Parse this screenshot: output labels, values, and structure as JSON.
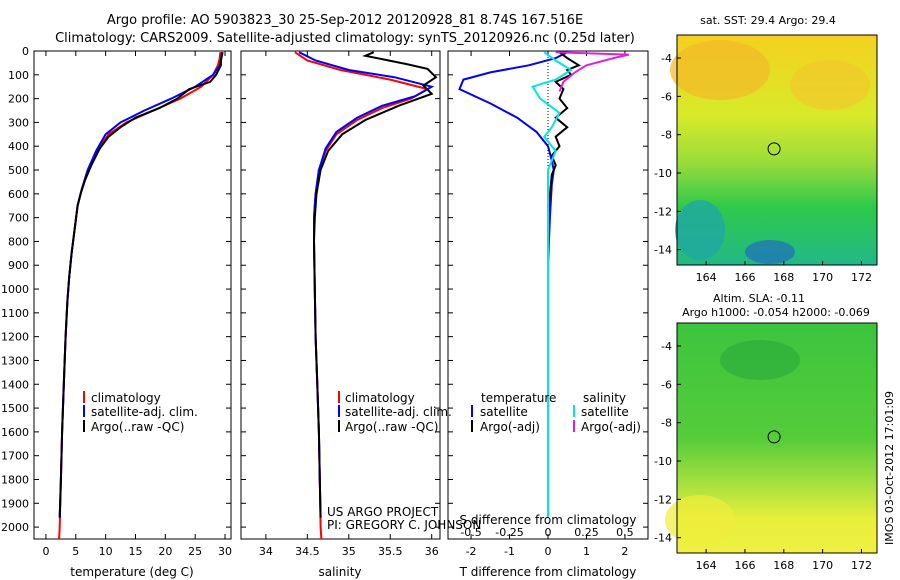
{
  "header": {
    "line1": "Argo profile: AO 5903823_30 25-Sep-2012 20120928_81 8.74S 167.516E",
    "line2": "Climatology: CARS2009. Satellite-adjusted climatology: synTS_20120926.nc (0.25d later)"
  },
  "footer": {
    "project": "US ARGO PROJECT",
    "pi": "PI: GREGORY C. JOHNSON",
    "stamp": "IMOS 03-Oct-2012 17:01:09"
  },
  "chart_data": [
    {
      "type": "line",
      "xlabel": "temperature (deg C)",
      "xlim": [
        -2,
        31
      ],
      "xticks": [
        "0",
        "5",
        "10",
        "15",
        "20",
        "25",
        "30"
      ],
      "xtick_values": [
        0,
        5,
        10,
        15,
        20,
        25,
        30
      ],
      "ylim": [
        2050,
        0
      ],
      "yticks": [
        "0",
        "100",
        "200",
        "300",
        "400",
        "500",
        "600",
        "700",
        "800",
        "900",
        "1000",
        "1100",
        "1200",
        "1300",
        "1400",
        "1500",
        "1600",
        "1700",
        "1800",
        "1900",
        "2000"
      ],
      "ytick_values": [
        0,
        100,
        200,
        300,
        400,
        500,
        600,
        700,
        800,
        900,
        1000,
        1100,
        1200,
        1300,
        1400,
        1500,
        1600,
        1700,
        1800,
        1900,
        2000
      ],
      "legend": [
        "climatology",
        "satellite-adj. clim.",
        "Argo(..raw -QC)"
      ],
      "legend_placement": "lower-center",
      "series": [
        {
          "name": "climatology",
          "color": "#ff0000",
          "points": [
            [
              29.2,
              5
            ],
            [
              29.1,
              30
            ],
            [
              28.8,
              60
            ],
            [
              28,
              100
            ],
            [
              26,
              150
            ],
            [
              22.5,
              200
            ],
            [
              18,
              250
            ],
            [
              13.5,
              300
            ],
            [
              10.5,
              350
            ],
            [
              8.5,
              420
            ],
            [
              7,
              500
            ],
            [
              6,
              580
            ],
            [
              5.3,
              650
            ],
            [
              4.8,
              750
            ],
            [
              4.3,
              850
            ],
            [
              3.9,
              950
            ],
            [
              3.6,
              1050
            ],
            [
              3.3,
              1200
            ],
            [
              3.0,
              1400
            ],
            [
              2.7,
              1600
            ],
            [
              2.5,
              1800
            ],
            [
              2.3,
              2000
            ],
            [
              2.2,
              2050
            ]
          ]
        },
        {
          "name": "satellite-adj. clim.",
          "color": "#0000ff",
          "points": [
            [
              29.5,
              5
            ],
            [
              29.4,
              30
            ],
            [
              29.1,
              60
            ],
            [
              28,
              100
            ],
            [
              25,
              150
            ],
            [
              21,
              200
            ],
            [
              16.5,
              250
            ],
            [
              12.5,
              300
            ],
            [
              10,
              350
            ],
            [
              8.4,
              420
            ],
            [
              7,
              500
            ],
            [
              6,
              580
            ],
            [
              5.3,
              650
            ],
            [
              4.8,
              750
            ],
            [
              4.3,
              850
            ],
            [
              3.9,
              950
            ],
            [
              3.6,
              1050
            ],
            [
              3.3,
              1200
            ],
            [
              3.0,
              1400
            ],
            [
              2.7,
              1600
            ],
            [
              2.5,
              1800
            ],
            [
              2.3,
              1960
            ]
          ]
        },
        {
          "name": "Argo(..raw -QC)",
          "color": "#000000",
          "points": [
            [
              29.6,
              5
            ],
            [
              29.3,
              40
            ],
            [
              29.3,
              60
            ],
            [
              28.9,
              80
            ],
            [
              28.5,
              100
            ],
            [
              27.5,
              130
            ],
            [
              24,
              160
            ],
            [
              22,
              200
            ],
            [
              19,
              240
            ],
            [
              15,
              280
            ],
            [
              12.5,
              320
            ],
            [
              10.5,
              360
            ],
            [
              9,
              410
            ],
            [
              7.6,
              480
            ],
            [
              6.6,
              540
            ],
            [
              5.8,
              600
            ],
            [
              5.3,
              650
            ],
            [
              4.8,
              750
            ],
            [
              4.3,
              850
            ],
            [
              3.9,
              950
            ],
            [
              3.6,
              1050
            ],
            [
              3.3,
              1200
            ],
            [
              3.0,
              1400
            ],
            [
              2.7,
              1600
            ],
            [
              2.5,
              1800
            ],
            [
              2.3,
              1960
            ]
          ]
        }
      ]
    },
    {
      "type": "line",
      "xlabel": "salinity",
      "xlim": [
        33.7,
        36.1
      ],
      "xticks": [
        "34",
        "34.5",
        "35",
        "35.5",
        "36"
      ],
      "xtick_values": [
        34,
        34.5,
        35,
        35.5,
        36
      ],
      "ylim": [
        2050,
        0
      ],
      "legend": [
        "climatology",
        "satellite-adj. clim.",
        "Argo(..raw -QC)"
      ],
      "legend_placement": "lower-right",
      "series": [
        {
          "name": "climatology",
          "color": "#ff0000",
          "points": [
            [
              34.35,
              5
            ],
            [
              34.5,
              40
            ],
            [
              34.9,
              80
            ],
            [
              35.5,
              120
            ],
            [
              35.95,
              160
            ],
            [
              35.75,
              200
            ],
            [
              35.4,
              240
            ],
            [
              35.1,
              290
            ],
            [
              34.85,
              350
            ],
            [
              34.72,
              420
            ],
            [
              34.64,
              500
            ],
            [
              34.6,
              600
            ],
            [
              34.58,
              700
            ],
            [
              34.58,
              800
            ],
            [
              34.59,
              1000
            ],
            [
              34.6,
              1200
            ],
            [
              34.62,
              1400
            ],
            [
              34.64,
              1600
            ],
            [
              34.65,
              1800
            ],
            [
              34.66,
              2000
            ],
            [
              34.67,
              2050
            ]
          ]
        },
        {
          "name": "satellite-adj. clim.",
          "color": "#0000ff",
          "points": [
            [
              34.4,
              5
            ],
            [
              34.6,
              40
            ],
            [
              35.0,
              80
            ],
            [
              35.55,
              110
            ],
            [
              36.0,
              150
            ],
            [
              35.8,
              190
            ],
            [
              35.4,
              230
            ],
            [
              35.1,
              280
            ],
            [
              34.85,
              340
            ],
            [
              34.72,
              410
            ],
            [
              34.64,
              500
            ],
            [
              34.6,
              600
            ],
            [
              34.58,
              700
            ],
            [
              34.58,
              800
            ],
            [
              34.59,
              1000
            ],
            [
              34.6,
              1200
            ],
            [
              34.62,
              1400
            ],
            [
              34.64,
              1600
            ],
            [
              34.65,
              1800
            ],
            [
              34.66,
              1960
            ]
          ]
        },
        {
          "name": "Argo(..raw -QC)",
          "color": "#000000",
          "points": [
            [
              35.3,
              5
            ],
            [
              35.2,
              20
            ],
            [
              35.7,
              55
            ],
            [
              35.95,
              75
            ],
            [
              36.05,
              110
            ],
            [
              35.9,
              145
            ],
            [
              36.0,
              180
            ],
            [
              35.6,
              230
            ],
            [
              35.2,
              290
            ],
            [
              34.92,
              350
            ],
            [
              34.75,
              420
            ],
            [
              34.66,
              500
            ],
            [
              34.61,
              600
            ],
            [
              34.59,
              700
            ],
            [
              34.58,
              800
            ],
            [
              34.59,
              1000
            ],
            [
              34.6,
              1200
            ],
            [
              34.62,
              1400
            ],
            [
              34.64,
              1600
            ],
            [
              34.65,
              1800
            ],
            [
              34.66,
              1960
            ]
          ]
        }
      ]
    },
    {
      "type": "line",
      "xlabel": "T difference from climatology",
      "xlabel_top": "S difference from climatology",
      "xlim": [
        -2.6,
        2.6
      ],
      "xticks": [
        "-2",
        "-1",
        "0",
        "1",
        "2"
      ],
      "xtick_values": [
        -2,
        -1,
        0,
        1,
        2
      ],
      "s_ticks": [
        "-0.5",
        "-0.25",
        "0",
        "0.25",
        "0.5"
      ],
      "s_tick_values": [
        -0.5,
        -0.25,
        0,
        0.25,
        0.5
      ],
      "ylim": [
        2050,
        0
      ],
      "legend_temperature_title": "temperature",
      "legend_salinity_title": "salinity",
      "legend": [
        "satellite",
        "Argo(-adj)",
        "satellite",
        "Argo(-adj)"
      ],
      "legend_placement": "lower-center",
      "series": [
        {
          "name": "satellite",
          "group": "temperature",
          "color": "#0000ff",
          "points": [
            [
              0.5,
              5
            ],
            [
              0.2,
              30
            ],
            [
              -0.5,
              60
            ],
            [
              -1.5,
              90
            ],
            [
              -2.2,
              120
            ],
            [
              -2.3,
              160
            ],
            [
              -1.5,
              220
            ],
            [
              -0.8,
              280
            ],
            [
              -0.3,
              340
            ],
            [
              0,
              400
            ],
            [
              0.1,
              460
            ],
            [
              0.15,
              500
            ],
            [
              0.1,
              560
            ],
            [
              0.05,
              700
            ],
            [
              0,
              900
            ],
            [
              0,
              1200
            ],
            [
              0,
              1500
            ],
            [
              0,
              1800
            ],
            [
              0,
              1960
            ]
          ]
        },
        {
          "name": "Argo(-adj)",
          "group": "temperature",
          "color": "#000000",
          "points": [
            [
              0.3,
              5
            ],
            [
              0.5,
              30
            ],
            [
              0.8,
              60
            ],
            [
              0.5,
              80
            ],
            [
              0.6,
              100
            ],
            [
              0.2,
              130
            ],
            [
              0.4,
              160
            ],
            [
              0.3,
              200
            ],
            [
              0.5,
              240
            ],
            [
              0.2,
              280
            ],
            [
              0.5,
              320
            ],
            [
              0.2,
              360
            ],
            [
              0.3,
              400
            ],
            [
              0.1,
              440
            ],
            [
              0.2,
              480
            ],
            [
              0.1,
              520
            ],
            [
              0.05,
              600
            ],
            [
              0,
              700
            ],
            [
              0,
              900
            ],
            [
              0,
              1200
            ],
            [
              0,
              1500
            ],
            [
              0,
              1800
            ],
            [
              0,
              1960
            ]
          ]
        },
        {
          "name": "satellite",
          "group": "salinity",
          "color": "#00e5e5",
          "points": [
            [
              -0.1,
              5
            ],
            [
              0.2,
              40
            ],
            [
              0.6,
              80
            ],
            [
              0.2,
              120
            ],
            [
              -0.4,
              150
            ],
            [
              -0.2,
              200
            ],
            [
              0.3,
              260
            ],
            [
              0.1,
              320
            ],
            [
              -0.1,
              360
            ],
            [
              0.2,
              420
            ],
            [
              0,
              500
            ],
            [
              0,
              700
            ],
            [
              0,
              1000
            ],
            [
              0,
              1400
            ],
            [
              0,
              1800
            ],
            [
              0,
              1960
            ]
          ]
        },
        {
          "name": "Argo(-adj)",
          "group": "salinity",
          "color": "#e020e0",
          "points": [
            [
              0.2,
              5
            ],
            [
              2.1,
              15
            ],
            [
              1.7,
              30
            ],
            [
              1.0,
              60
            ],
            [
              0.7,
              90
            ],
            [
              0.4,
              130
            ],
            [
              0.3,
              170
            ]
          ]
        }
      ]
    },
    {
      "type": "heatmap",
      "title": "sat. SST: 29.4 Argo: 29.4",
      "xticks": [
        "164",
        "166",
        "168",
        "170",
        "172"
      ],
      "xtick_values": [
        164,
        166,
        168,
        170,
        172
      ],
      "yticks": [
        "-4",
        "-6",
        "-8",
        "-10",
        "-12",
        "-14"
      ],
      "ytick_values": [
        -4,
        -6,
        -8,
        -10,
        -12,
        -14
      ],
      "xlim": [
        162.5,
        172.8
      ],
      "ylim": [
        -14.8,
        -2.8
      ],
      "marker": [
        167.5,
        -8.74
      ]
    },
    {
      "type": "heatmap",
      "title_line1": "Altim. SLA: -0.11",
      "title_line2": "Argo h1000: -0.054 h2000: -0.069",
      "xticks": [
        "164",
        "166",
        "168",
        "170",
        "172"
      ],
      "xtick_values": [
        164,
        166,
        168,
        170,
        172
      ],
      "yticks": [
        "-4",
        "-6",
        "-8",
        "-10",
        "-12",
        "-14"
      ],
      "ytick_values": [
        -4,
        -6,
        -8,
        -10,
        -12,
        -14
      ],
      "xlim": [
        162.5,
        172.8
      ],
      "ylim": [
        -14.8,
        -2.8
      ],
      "marker": [
        167.5,
        -8.74
      ]
    }
  ]
}
